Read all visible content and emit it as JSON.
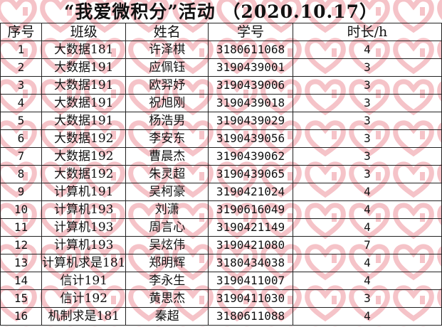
{
  "title": "“我爱微积分”活动  （2020.10.17）",
  "watermark_color": "#f5c3c8",
  "table": {
    "headers": [
      "序号",
      "班级",
      "姓名",
      "学号",
      "时长/h"
    ],
    "rows": [
      [
        "1",
        "大数据181",
        "许泽棋",
        "3180611068",
        "4"
      ],
      [
        "2",
        "大数据191",
        "应佩钰",
        "3190439001",
        "3"
      ],
      [
        "3",
        "大数据191",
        "欧羿妤",
        "3190439006",
        "3"
      ],
      [
        "4",
        "大数据191",
        "祝旭刚",
        "3190439018",
        "3"
      ],
      [
        "5",
        "大数据191",
        "杨浩男",
        "3190439029",
        "3"
      ],
      [
        "6",
        "大数据192",
        "李安东",
        "3190439056",
        "3"
      ],
      [
        "7",
        "大数据192",
        "曹晨杰",
        "3190439062",
        "3"
      ],
      [
        "8",
        "大数据192",
        "朱灵超",
        "3190439065",
        "3"
      ],
      [
        "9",
        "计算机191",
        "吴柯豪",
        "3190421024",
        "4"
      ],
      [
        "10",
        "计算机193",
        "刘潇",
        "3190616049",
        "4"
      ],
      [
        "11",
        "计算机193",
        "周言心",
        "3190421149",
        "4"
      ],
      [
        "12",
        "计算机193",
        "吴炫伟",
        "3190421080",
        "7"
      ],
      [
        "13",
        "计算机求是181",
        "郑明辉",
        "3180434038",
        "4"
      ],
      [
        "14",
        "信计191",
        "李永生",
        "3190411007",
        "4"
      ],
      [
        "15",
        "信计192",
        "黄思杰",
        "3190411030",
        "3"
      ],
      [
        "16",
        "机制求是181",
        "秦超",
        "3180611088",
        "4"
      ]
    ]
  }
}
